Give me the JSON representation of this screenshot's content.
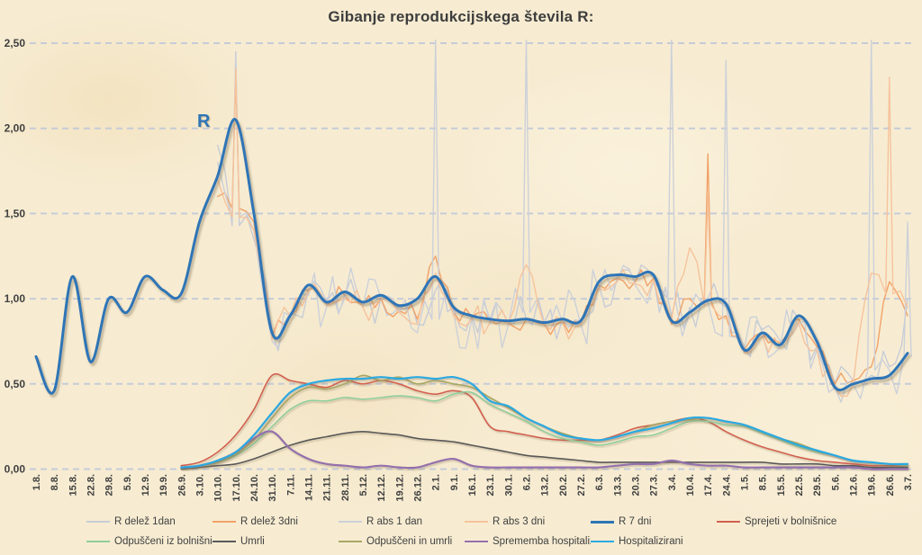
{
  "chart_data": {
    "type": "line",
    "title": "Gibanje reprodukcijskega števila R:",
    "xlabel": "",
    "ylabel": "",
    "ylim": [
      0,
      2.5
    ],
    "grid": "horizontal-dashed",
    "legend_position": "bottom",
    "y_ticks": [
      {
        "label": "0,00",
        "value": 0
      },
      {
        "label": "0,50",
        "value": 0.5
      },
      {
        "label": "1,00",
        "value": 1
      },
      {
        "label": "1,50",
        "value": 1.5
      },
      {
        "label": "2,00",
        "value": 2
      },
      {
        "label": "2,50",
        "value": 2.5
      }
    ],
    "x_categories": [
      "1.8.",
      "8.8.",
      "15.8.",
      "22.8.",
      "29.8.",
      "5.9.",
      "12.9.",
      "19.9.",
      "26.9.",
      "3.10.",
      "10.10.",
      "17.10.",
      "24.10.",
      "31.10.",
      "7.11.",
      "14.11.",
      "21.11.",
      "28.11.",
      "5.12.",
      "12.12.",
      "19.12.",
      "26.12.",
      "2.1.",
      "9.1.",
      "16.1.",
      "23.1.",
      "30.1.",
      "6.2.",
      "13.2.",
      "20.2.",
      "27.2.",
      "6.3.",
      "13.3.",
      "20.3.",
      "27.3.",
      "3.4.",
      "10.4.",
      "17.4.",
      "24.4.",
      "1.5.",
      "8.5.",
      "15.5.",
      "22.5.",
      "29.5.",
      "5.6.",
      "12.6.",
      "19.6.",
      "26.6.",
      "3.7."
    ],
    "annotations": [
      {
        "text": "R",
        "x_category": "10.10.",
        "y_value": 2.0,
        "color": "#2e75b6"
      }
    ],
    "series": [
      {
        "name": "R delež 1dan",
        "color": "#c7ccd6",
        "width": 1.4,
        "render": "noisy",
        "noise": 0.15,
        "values": [
          null,
          null,
          null,
          null,
          null,
          null,
          null,
          null,
          null,
          null,
          1.9,
          2.45,
          1.35,
          0.8,
          0.92,
          1.05,
          0.98,
          1.02,
          0.98,
          1.0,
          0.95,
          0.85,
          1.05,
          0.95,
          0.9,
          0.88,
          0.86,
          0.88,
          0.86,
          0.88,
          0.87,
          1.08,
          1.12,
          1.1,
          1.12,
          0.9,
          0.95,
          1.0,
          0.95,
          0.72,
          0.82,
          0.75,
          0.88,
          0.72,
          0.5,
          0.52,
          0.55,
          0.6,
          1.0
        ]
      },
      {
        "name": "R delež 3dni",
        "color": "#f1a268",
        "width": 1.4,
        "render": "noisy",
        "noise": 0.07,
        "values": [
          null,
          null,
          null,
          null,
          null,
          null,
          null,
          null,
          null,
          null,
          1.6,
          2.3,
          1.45,
          0.78,
          0.9,
          1.05,
          0.97,
          1.02,
          0.96,
          1.0,
          0.93,
          0.88,
          1.25,
          0.92,
          0.89,
          0.87,
          0.86,
          0.88,
          0.85,
          0.87,
          0.86,
          1.08,
          1.12,
          1.1,
          1.12,
          0.85,
          1.0,
          1.85,
          0.9,
          0.7,
          0.8,
          0.74,
          0.88,
          0.72,
          0.5,
          0.52,
          0.6,
          1.1,
          0.9
        ]
      },
      {
        "name": "R abs 1 dan",
        "color": "#ccd0d9",
        "width": 1.4,
        "render": "noisy",
        "noise": 0.2,
        "values": [
          null,
          null,
          null,
          null,
          null,
          null,
          null,
          null,
          null,
          null,
          1.8,
          2.4,
          1.4,
          0.75,
          0.9,
          1.02,
          0.95,
          1.0,
          0.95,
          1.0,
          0.92,
          0.8,
          2.52,
          0.92,
          0.88,
          0.85,
          0.84,
          2.52,
          0.85,
          0.86,
          0.85,
          1.05,
          1.1,
          1.08,
          1.1,
          2.52,
          0.92,
          0.98,
          2.4,
          0.7,
          0.8,
          0.72,
          0.85,
          0.7,
          0.48,
          0.5,
          2.52,
          0.58,
          1.45
        ]
      },
      {
        "name": "R abs 3 dni",
        "color": "#f6c39c",
        "width": 1.4,
        "render": "noisy",
        "noise": 0.1,
        "values": [
          null,
          null,
          null,
          null,
          null,
          null,
          null,
          null,
          null,
          null,
          1.7,
          2.35,
          1.4,
          0.76,
          0.9,
          1.04,
          0.96,
          1.0,
          0.95,
          0.99,
          0.92,
          0.85,
          1.15,
          0.9,
          0.88,
          0.86,
          0.85,
          1.2,
          0.84,
          0.86,
          0.85,
          1.06,
          1.1,
          1.09,
          1.11,
          0.88,
          1.3,
          1.6,
          0.88,
          0.68,
          0.78,
          0.72,
          0.86,
          0.7,
          0.48,
          0.5,
          1.15,
          2.3,
          0.95
        ]
      },
      {
        "name": "R 7 dni",
        "color": "#2e75b6",
        "width": 3,
        "render": "smooth",
        "shadow": "strong",
        "values": [
          0.66,
          0.46,
          1.13,
          0.63,
          1.0,
          0.92,
          1.13,
          1.05,
          1.03,
          1.45,
          1.72,
          2.05,
          1.5,
          0.8,
          0.9,
          1.08,
          0.98,
          1.04,
          0.98,
          1.02,
          0.96,
          1.0,
          1.13,
          0.95,
          0.9,
          0.88,
          0.87,
          0.88,
          0.86,
          0.88,
          0.87,
          1.1,
          1.14,
          1.13,
          1.14,
          0.87,
          0.92,
          0.99,
          0.97,
          0.7,
          0.8,
          0.73,
          0.9,
          0.75,
          0.48,
          0.5,
          0.53,
          0.55,
          0.68
        ]
      },
      {
        "name": "Sprejeti v bolnišnice",
        "color": "#d2604f",
        "width": 1.6,
        "render": "smooth",
        "shadow": "light",
        "values": [
          null,
          null,
          null,
          null,
          null,
          null,
          null,
          null,
          0.02,
          0.04,
          0.1,
          0.2,
          0.35,
          0.55,
          0.52,
          0.5,
          0.48,
          0.52,
          0.5,
          0.52,
          0.5,
          0.46,
          0.44,
          0.46,
          0.42,
          0.25,
          0.22,
          0.2,
          0.18,
          0.17,
          0.17,
          0.17,
          0.2,
          0.24,
          0.26,
          0.28,
          0.3,
          0.28,
          0.22,
          0.17,
          0.13,
          0.1,
          0.07,
          0.05,
          0.04,
          0.03,
          0.02,
          0.02,
          0.02
        ]
      },
      {
        "name": "Odpuščeni iz bolnišnic",
        "color": "#8fce9c",
        "width": 1.6,
        "render": "smooth",
        "shadow": "light",
        "values": [
          null,
          null,
          null,
          null,
          null,
          null,
          null,
          null,
          0.01,
          0.02,
          0.04,
          0.08,
          0.15,
          0.25,
          0.35,
          0.4,
          0.4,
          0.42,
          0.41,
          0.42,
          0.43,
          0.42,
          0.4,
          0.44,
          0.45,
          0.38,
          0.33,
          0.28,
          0.22,
          0.18,
          0.16,
          0.14,
          0.16,
          0.19,
          0.2,
          0.24,
          0.28,
          0.28,
          0.26,
          0.25,
          0.21,
          0.17,
          0.13,
          0.1,
          0.08,
          0.05,
          0.04,
          0.03,
          0.02
        ]
      },
      {
        "name": "Umrli",
        "color": "#595959",
        "width": 1.6,
        "render": "smooth",
        "shadow": "light",
        "values": [
          null,
          null,
          null,
          null,
          null,
          null,
          null,
          null,
          0.0,
          0.01,
          0.02,
          0.03,
          0.06,
          0.1,
          0.14,
          0.17,
          0.19,
          0.21,
          0.22,
          0.21,
          0.2,
          0.18,
          0.17,
          0.16,
          0.14,
          0.12,
          0.1,
          0.08,
          0.07,
          0.06,
          0.05,
          0.04,
          0.04,
          0.04,
          0.04,
          0.04,
          0.04,
          0.04,
          0.04,
          0.04,
          0.04,
          0.03,
          0.03,
          0.03,
          0.02,
          0.02,
          0.01,
          0.01,
          0.01
        ]
      },
      {
        "name": "Odpuščeni in umrli",
        "color": "#a8a763",
        "width": 1.6,
        "render": "smooth",
        "shadow": "light",
        "values": [
          null,
          null,
          null,
          null,
          null,
          null,
          null,
          null,
          0.01,
          0.02,
          0.04,
          0.09,
          0.17,
          0.3,
          0.42,
          0.48,
          0.47,
          0.5,
          0.55,
          0.52,
          0.54,
          0.5,
          0.52,
          0.5,
          0.48,
          0.42,
          0.36,
          0.3,
          0.25,
          0.21,
          0.18,
          0.17,
          0.19,
          0.22,
          0.26,
          0.28,
          0.29,
          0.3,
          0.28,
          0.26,
          0.22,
          0.18,
          0.15,
          0.11,
          0.08,
          0.05,
          0.04,
          0.03,
          0.03
        ]
      },
      {
        "name": "Sprememba hospitalizacij",
        "color": "#9470ad",
        "width": 2.2,
        "render": "smooth",
        "shadow": "light",
        "values": [
          null,
          null,
          null,
          null,
          null,
          null,
          null,
          null,
          0.01,
          0.02,
          0.05,
          0.1,
          0.18,
          0.22,
          0.12,
          0.06,
          0.03,
          0.02,
          0.01,
          0.02,
          0.01,
          0.01,
          0.04,
          0.06,
          0.02,
          0.01,
          0.01,
          0.01,
          0.01,
          0.01,
          0.01,
          0.01,
          0.02,
          0.03,
          0.03,
          0.05,
          0.03,
          0.02,
          0.02,
          0.01,
          0.01,
          0.01,
          0.01,
          0.01,
          0.01,
          0.01,
          0.0,
          0.0,
          0.0
        ]
      },
      {
        "name": "Hospitalizirani",
        "color": "#2ca9e1",
        "width": 2.2,
        "render": "smooth",
        "shadow": "light",
        "values": [
          null,
          null,
          null,
          null,
          null,
          null,
          null,
          null,
          0.01,
          0.02,
          0.05,
          0.1,
          0.2,
          0.33,
          0.45,
          0.5,
          0.52,
          0.53,
          0.53,
          0.54,
          0.53,
          0.54,
          0.53,
          0.54,
          0.5,
          0.4,
          0.37,
          0.3,
          0.25,
          0.2,
          0.18,
          0.17,
          0.19,
          0.22,
          0.24,
          0.27,
          0.3,
          0.3,
          0.28,
          0.26,
          0.22,
          0.18,
          0.14,
          0.11,
          0.08,
          0.05,
          0.04,
          0.03,
          0.03
        ]
      }
    ]
  },
  "colors": {
    "background": "#f7ecd2",
    "gridline": "#c6cbd8",
    "title_text": "#3d3d3d",
    "axis_text": "#404040",
    "annotation": "#2e75b6"
  }
}
